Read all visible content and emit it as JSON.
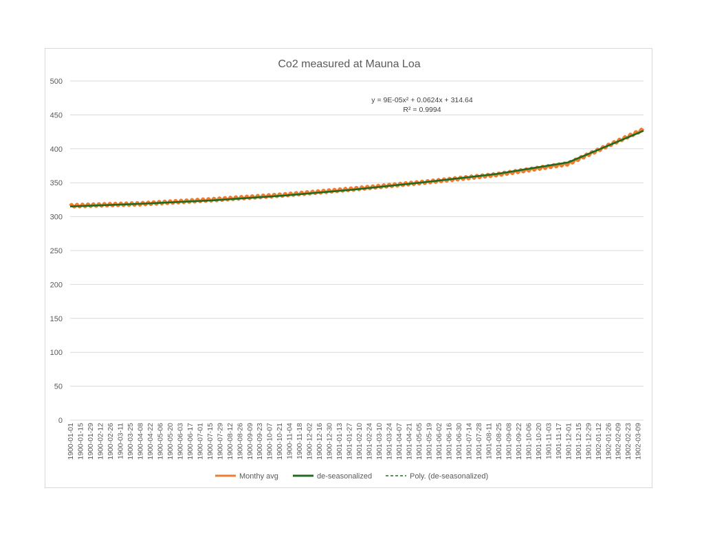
{
  "chart_data": {
    "type": "line",
    "title": "Co2 measured at Mauna Loa",
    "xlabel": "",
    "ylabel": "",
    "ylim": [
      0,
      500
    ],
    "yticks": [
      0,
      50,
      100,
      150,
      200,
      250,
      300,
      350,
      400,
      450,
      500
    ],
    "grid": true,
    "legend_position": "bottom",
    "x_start": "1900-01-01",
    "x_step_days": 1,
    "x_label_every": 14,
    "x_tick_labels": [
      "1900-01-01",
      "1900-01-15",
      "1900-01-29",
      "1900-02-12",
      "1900-02-26",
      "1900-03-11",
      "1900-03-25",
      "1900-04-08",
      "1900-04-22",
      "1900-05-06",
      "1900-05-20",
      "1900-06-03",
      "1900-06-17",
      "1900-07-01",
      "1900-07-15",
      "1900-07-29",
      "1900-08-12",
      "1900-08-26",
      "1900-09-09",
      "1900-09-23",
      "1900-10-07",
      "1900-10-21",
      "1900-11-04",
      "1900-11-18",
      "1900-12-02",
      "1900-12-16",
      "1900-12-30",
      "1901-01-13",
      "1901-01-27",
      "1901-02-10",
      "1901-02-24",
      "1901-03-10",
      "1901-03-24",
      "1901-04-07",
      "1901-04-21",
      "1901-05-05",
      "1901-05-19",
      "1901-06-02",
      "1901-06-16",
      "1901-06-30",
      "1901-07-14",
      "1901-07-28",
      "1901-08-11",
      "1901-08-25",
      "1901-09-08",
      "1901-09-22",
      "1901-10-06",
      "1901-10-20",
      "1901-11-03",
      "1901-11-17",
      "1901-12-01",
      "1901-12-15",
      "1901-12-29",
      "1902-01-12",
      "1902-01-26",
      "1902-02-09",
      "1902-02-23",
      "1902-03-09"
    ],
    "x_count": 807,
    "series": [
      {
        "name": "Monthy avg",
        "color": "#ed7d31",
        "style": "solid",
        "description": "seasonal oscillation around trend",
        "anchors": [
          [
            0,
            316
          ],
          [
            100,
            319
          ],
          [
            200,
            325
          ],
          [
            300,
            332
          ],
          [
            400,
            341
          ],
          [
            500,
            351
          ],
          [
            600,
            362
          ],
          [
            700,
            378
          ],
          [
            807,
            429
          ]
        ]
      },
      {
        "name": "de-seasonalized",
        "color": "#1e6b21",
        "style": "solid",
        "anchors": [
          [
            0,
            315
          ],
          [
            100,
            319
          ],
          [
            200,
            324
          ],
          [
            300,
            331
          ],
          [
            400,
            340
          ],
          [
            500,
            351
          ],
          [
            600,
            363
          ],
          [
            700,
            380
          ],
          [
            807,
            427
          ]
        ]
      },
      {
        "name": "Poly. (de-seasonalized)",
        "color": "#1e6b21",
        "style": "dashed",
        "trendline": {
          "a": 9e-05,
          "b": 0.0624,
          "c": 314.64
        }
      }
    ],
    "annotations": {
      "equation": "y = 9E-05x² + 0.0624x + 314.64",
      "r_squared": "R² = 0.9994"
    }
  }
}
